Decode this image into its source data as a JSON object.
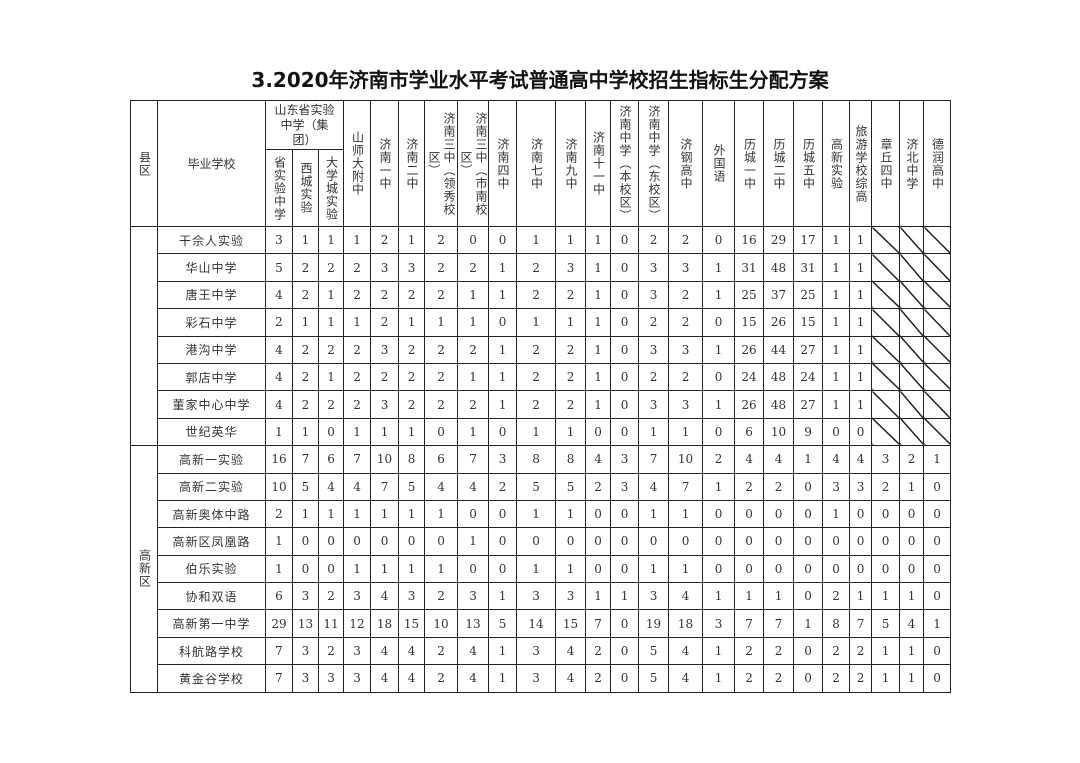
{
  "title": "3.2020年济南市学业水平考试普通高中学校招生指标生分配方案",
  "header": {
    "district": "县区",
    "school": "毕业学校",
    "group": "山东省实验中学（集团）",
    "group_columns": [
      "省实验中学",
      "西城实验",
      "大学城实验"
    ],
    "columns": [
      "山师大附中",
      "济南一中",
      "济南二中",
      "济南三中（领秀校区）",
      "济南三中（市南校区）",
      "济南四中",
      "济南七中",
      "济南九中",
      "济南十一中",
      "济南中学（本校区）",
      "济南中学（东校区）",
      "济钢高中",
      "外国语",
      "历城一中",
      "历城二中",
      "历城五中",
      "高新实验",
      "旅游学校综高",
      "章丘四中",
      "济北中学",
      "德润高中"
    ]
  },
  "groups": [
    {
      "district": "",
      "slashed_columns": 3,
      "rows": [
        {
          "school": "干佘人实验",
          "values": [
            3,
            1,
            1,
            1,
            2,
            1,
            2,
            0,
            0,
            1,
            1,
            1,
            0,
            2,
            2,
            0,
            16,
            29,
            17,
            1,
            1
          ]
        },
        {
          "school": "华山中学",
          "values": [
            5,
            2,
            2,
            2,
            3,
            3,
            2,
            2,
            1,
            2,
            3,
            1,
            0,
            3,
            3,
            1,
            31,
            48,
            31,
            1,
            1
          ]
        },
        {
          "school": "唐王中学",
          "values": [
            4,
            2,
            1,
            2,
            2,
            2,
            2,
            1,
            1,
            2,
            2,
            1,
            0,
            3,
            2,
            1,
            25,
            37,
            25,
            1,
            1
          ]
        },
        {
          "school": "彩石中学",
          "values": [
            2,
            1,
            1,
            1,
            2,
            1,
            1,
            1,
            0,
            1,
            1,
            1,
            0,
            2,
            2,
            0,
            15,
            26,
            15,
            1,
            1
          ]
        },
        {
          "school": "港沟中学",
          "values": [
            4,
            2,
            2,
            2,
            3,
            2,
            2,
            2,
            1,
            2,
            2,
            1,
            0,
            3,
            3,
            1,
            26,
            44,
            27,
            1,
            1
          ]
        },
        {
          "school": "郭店中学",
          "values": [
            4,
            2,
            1,
            2,
            2,
            2,
            2,
            1,
            1,
            2,
            2,
            1,
            0,
            2,
            2,
            0,
            24,
            48,
            24,
            1,
            1
          ]
        },
        {
          "school": "董家中心中学",
          "values": [
            4,
            2,
            2,
            2,
            3,
            2,
            2,
            2,
            1,
            2,
            2,
            1,
            0,
            3,
            3,
            1,
            26,
            48,
            27,
            1,
            1
          ]
        },
        {
          "school": "世纪英华",
          "values": [
            1,
            1,
            0,
            1,
            1,
            1,
            0,
            1,
            0,
            1,
            1,
            0,
            0,
            1,
            1,
            0,
            6,
            10,
            9,
            0,
            0
          ]
        }
      ]
    },
    {
      "district": "高新区",
      "slashed_columns": 0,
      "rows": [
        {
          "school": "高新一实验",
          "values": [
            16,
            7,
            6,
            7,
            10,
            8,
            6,
            7,
            3,
            8,
            8,
            4,
            3,
            7,
            10,
            2,
            4,
            4,
            1,
            4,
            4,
            3,
            2,
            1
          ]
        },
        {
          "school": "高新二实验",
          "values": [
            10,
            5,
            4,
            4,
            7,
            5,
            4,
            4,
            2,
            5,
            5,
            2,
            3,
            4,
            7,
            1,
            2,
            2,
            0,
            3,
            3,
            2,
            1,
            0
          ]
        },
        {
          "school": "高新奥体中路",
          "values": [
            2,
            1,
            1,
            1,
            1,
            1,
            1,
            0,
            0,
            1,
            1,
            0,
            0,
            1,
            1,
            0,
            0,
            0,
            0,
            1,
            0,
            0,
            0,
            0
          ]
        },
        {
          "school": "高新区凤凰路",
          "values": [
            1,
            0,
            0,
            0,
            0,
            0,
            0,
            1,
            0,
            0,
            0,
            0,
            0,
            0,
            0,
            0,
            0,
            0,
            0,
            0,
            0,
            0,
            0,
            0
          ]
        },
        {
          "school": "伯乐实验",
          "values": [
            1,
            0,
            0,
            1,
            1,
            1,
            1,
            0,
            0,
            1,
            1,
            0,
            0,
            1,
            1,
            0,
            0,
            0,
            0,
            0,
            0,
            0,
            0,
            0
          ]
        },
        {
          "school": "协和双语",
          "values": [
            6,
            3,
            2,
            3,
            4,
            3,
            2,
            3,
            1,
            3,
            3,
            1,
            1,
            3,
            4,
            1,
            1,
            1,
            0,
            2,
            1,
            1,
            1,
            0
          ]
        },
        {
          "school": "高新第一中学",
          "values": [
            29,
            13,
            11,
            12,
            18,
            15,
            10,
            13,
            5,
            14,
            15,
            7,
            0,
            19,
            18,
            3,
            7,
            7,
            1,
            8,
            7,
            5,
            4,
            1
          ]
        },
        {
          "school": "科航路学校",
          "values": [
            7,
            3,
            2,
            3,
            4,
            4,
            2,
            4,
            1,
            3,
            4,
            2,
            0,
            5,
            4,
            1,
            2,
            2,
            0,
            2,
            2,
            1,
            1,
            0
          ]
        },
        {
          "school": "黄金谷学校",
          "values": [
            7,
            3,
            3,
            3,
            4,
            4,
            2,
            4,
            1,
            3,
            4,
            2,
            0,
            5,
            4,
            1,
            2,
            2,
            0,
            2,
            2,
            1,
            1,
            0
          ]
        }
      ]
    }
  ]
}
